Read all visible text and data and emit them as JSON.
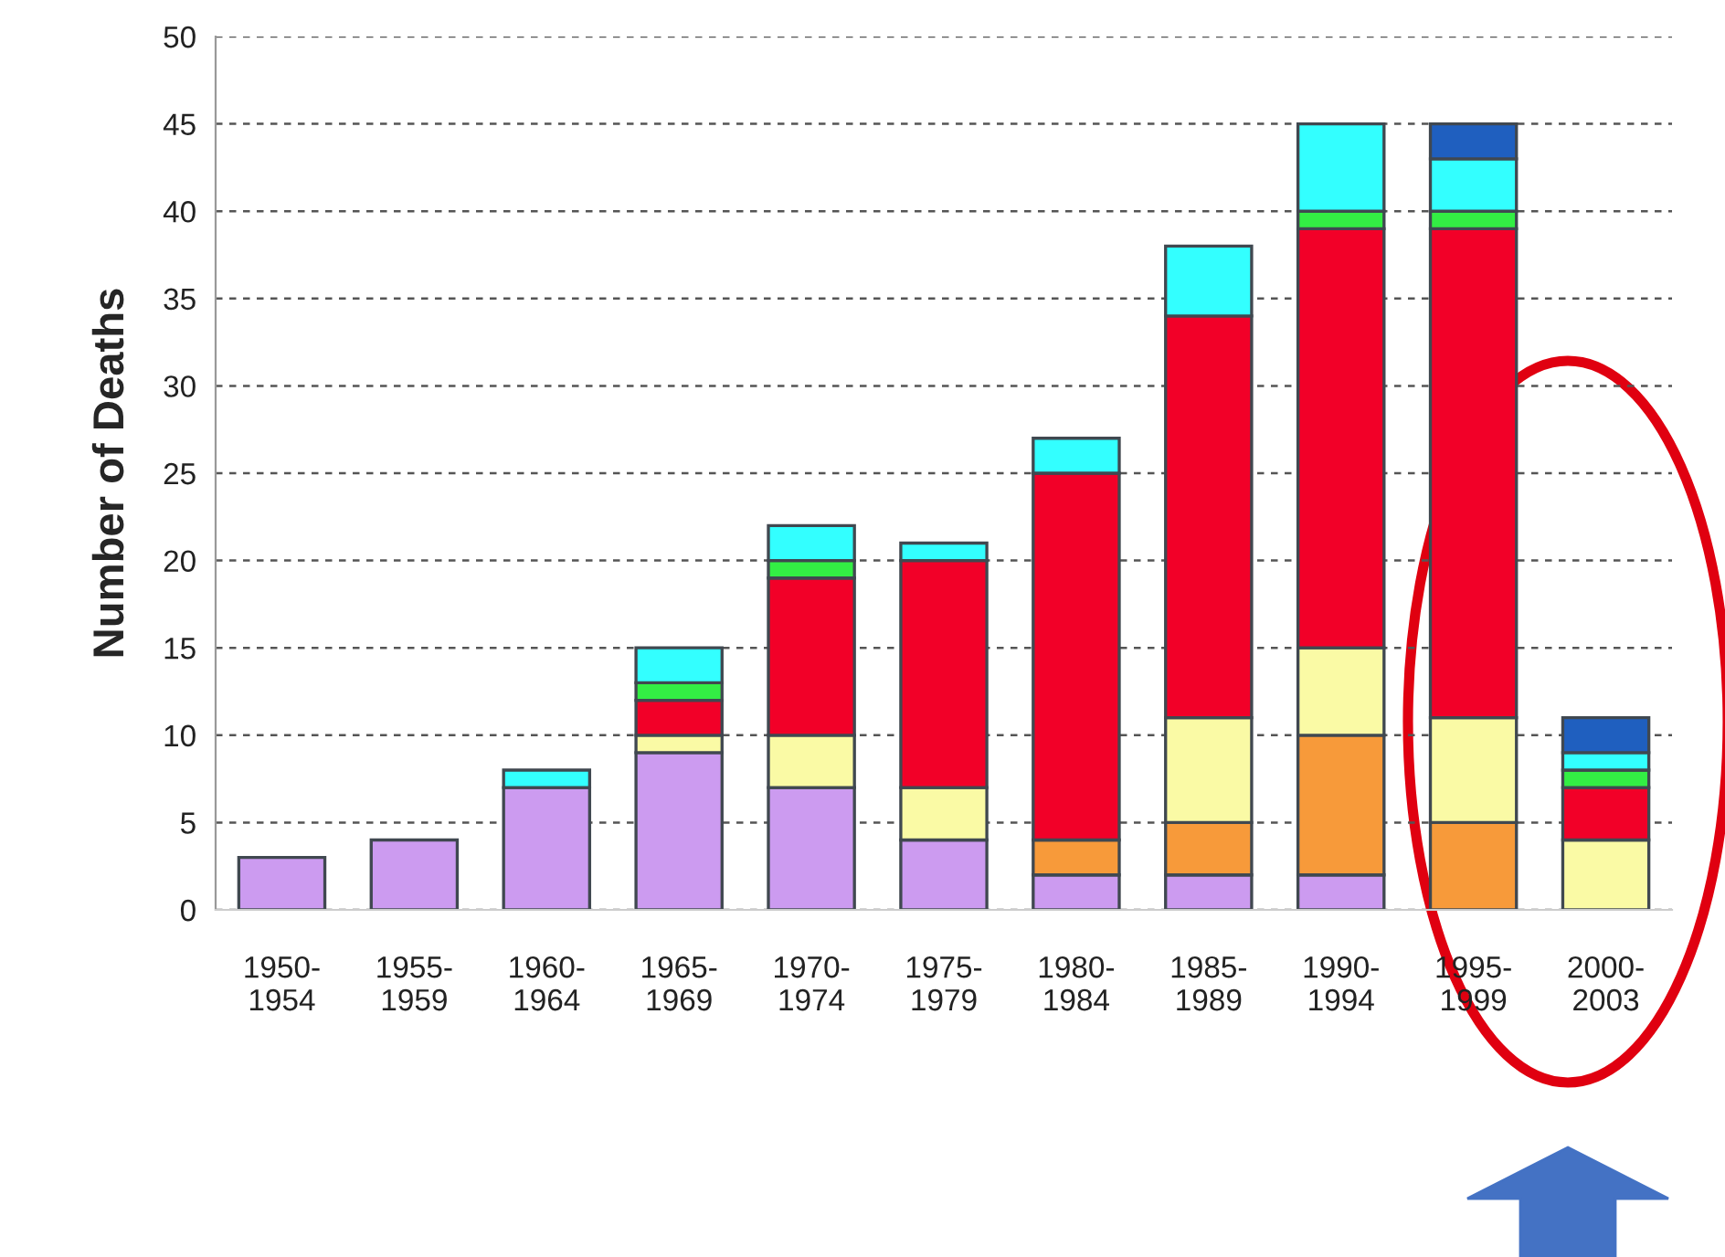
{
  "chart_data": {
    "type": "bar",
    "stacked": true,
    "ylabel": "Number of Deaths",
    "categories": [
      "1950-\n1954",
      "1955-\n1959",
      "1960-\n1964",
      "1965-\n1969",
      "1970-\n1974",
      "1975-\n1979",
      "1980-\n1984",
      "1985-\n1989",
      "1990-\n1994",
      "1995-\n1999",
      "2000-\n2003"
    ],
    "series": [
      {
        "color": "#cc9bf0",
        "values": [
          3,
          4,
          7,
          9,
          7,
          4,
          2,
          2,
          2,
          0,
          0
        ]
      },
      {
        "color": "#f79a3a",
        "values": [
          0,
          0,
          0,
          0,
          0,
          0,
          2,
          3,
          8,
          5,
          0
        ]
      },
      {
        "color": "#fafaa5",
        "values": [
          0,
          0,
          0,
          1,
          3,
          3,
          0,
          6,
          5,
          6,
          4
        ]
      },
      {
        "color": "#f20028",
        "values": [
          0,
          0,
          0,
          2,
          9,
          13,
          21,
          23,
          24,
          28,
          3
        ]
      },
      {
        "color": "#33ee44",
        "values": [
          0,
          0,
          0,
          1,
          1,
          0,
          0,
          0,
          1,
          1,
          1
        ]
      },
      {
        "color": "#33ffff",
        "values": [
          0,
          0,
          1,
          2,
          2,
          1,
          2,
          4,
          5,
          3,
          1
        ]
      },
      {
        "color": "#1f5fbf",
        "values": [
          0,
          0,
          0,
          0,
          0,
          0,
          0,
          0,
          0,
          2,
          2
        ]
      }
    ],
    "ylim": [
      0,
      50
    ],
    "yticks": [
      0,
      5,
      10,
      15,
      20,
      25,
      30,
      35,
      40,
      45,
      50
    ],
    "grid": "y"
  }
}
